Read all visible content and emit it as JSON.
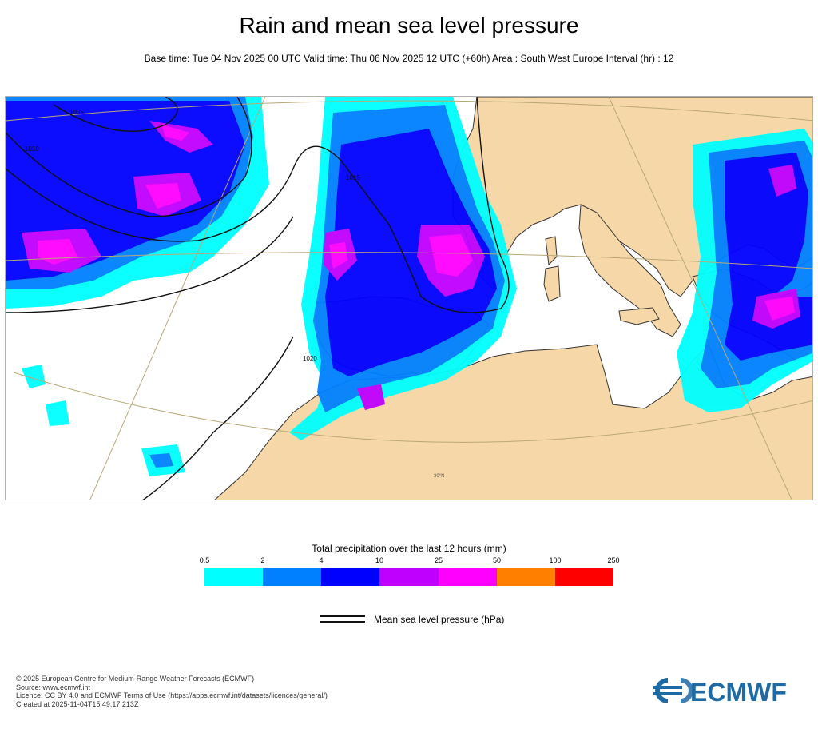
{
  "title": "Rain and mean sea level pressure",
  "subtitle": "Base time: Tue 04 Nov 2025 00 UTC Valid time: Thu 06 Nov 2025 12 UTC (+60h) Area : South West Europe Interval (hr) : 12",
  "map": {
    "isobar_labels": [
      "1005",
      "1010",
      "1015",
      "1020"
    ],
    "latitude_label": "30°N"
  },
  "legend": {
    "title": "Total precipitation over the last 12 hours (mm)",
    "ticks": [
      "0.5",
      "2",
      "4",
      "10",
      "25",
      "50",
      "100",
      "250"
    ],
    "colors": [
      "#00ffff",
      "#0080ff",
      "#0000ff",
      "#c000ff",
      "#ff00ff",
      "#ff8000",
      "#ff0000"
    ],
    "mslp_label": "Mean sea level pressure (hPa)"
  },
  "footer": [
    "© 2025 European Centre for Medium-Range Weather Forecasts (ECMWF)",
    "Source: www.ecmwf.int",
    "Licence: CC BY 4.0 and ECMWF Terms of Use (https://apps.ecmwf.int/datasets/licences/general/)",
    "Created at 2025-11-04T15:49:17.213Z"
  ],
  "logo": {
    "text": "ECMWF",
    "color": "#1d6aa5"
  }
}
